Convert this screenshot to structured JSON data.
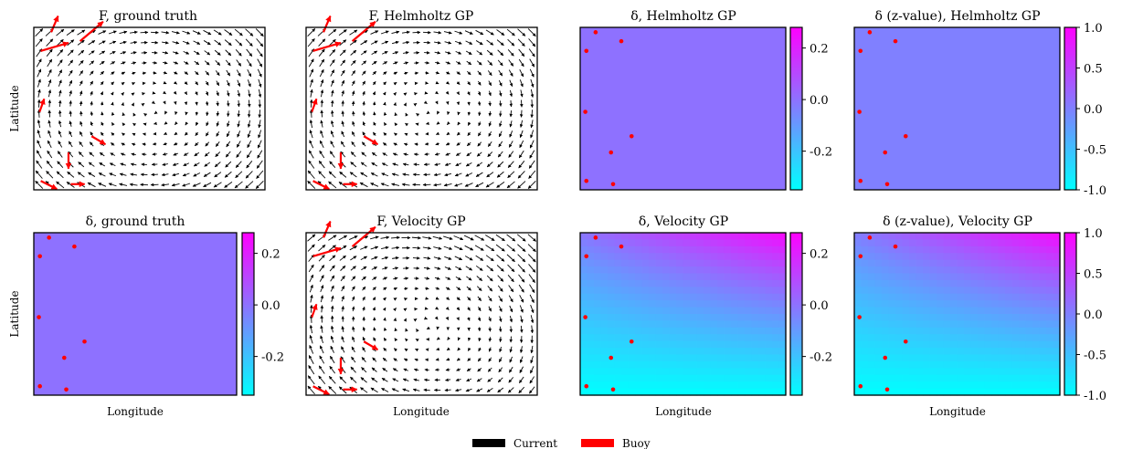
{
  "figure": {
    "legend": [
      {
        "label": "Current",
        "color": "#000000"
      },
      {
        "label": "Buoy",
        "color": "#ff0000"
      }
    ],
    "xlabel": "Longitude",
    "ylabel": "Latitude"
  },
  "colors": {
    "cmap_low": "#00ffff",
    "cmap_high": "#ff00ff",
    "current": "#000000",
    "buoy": "#ff0000"
  },
  "chart_data": [
    {
      "type": "quiver",
      "title": "F, ground truth",
      "field": "vortex",
      "ylabel": "Latitude",
      "xlabel": ""
    },
    {
      "type": "quiver",
      "title": "F, Helmholtz GP",
      "field": "vortex",
      "ylabel": "",
      "xlabel": ""
    },
    {
      "type": "heatmap",
      "title": "δ, Helmholtz GP",
      "field": "uniform",
      "uniform_value": 0.0,
      "colorbar": {
        "range": [
          -0.35,
          0.28
        ],
        "ticks": [
          0.2,
          0.0,
          -0.2
        ],
        "tick_labels": [
          "0.2",
          "0.0",
          "-0.2"
        ]
      },
      "xlabel": ""
    },
    {
      "type": "heatmap",
      "title": "δ (z-value), Helmholtz GP",
      "field": "uniform",
      "uniform_value": 0.0,
      "colorbar": {
        "range": [
          -1.0,
          1.0
        ],
        "ticks": [
          1.0,
          0.5,
          0.0,
          -0.5,
          -1.0
        ],
        "tick_labels": [
          "1.0",
          "0.5",
          "0.0",
          "-0.5",
          "-1.0"
        ]
      },
      "xlabel": ""
    },
    {
      "type": "heatmap",
      "title": "δ, ground truth",
      "field": "uniform",
      "uniform_value": 0.0,
      "colorbar": {
        "range": [
          -0.35,
          0.28
        ],
        "ticks": [
          0.2,
          0.0,
          -0.2
        ],
        "tick_labels": [
          "0.2",
          "0.0",
          "-0.2"
        ]
      },
      "ylabel": "Latitude",
      "xlabel": "Longitude"
    },
    {
      "type": "quiver",
      "title": "F, Velocity GP",
      "field": "vortex_distorted",
      "ylabel": "",
      "xlabel": "Longitude"
    },
    {
      "type": "heatmap",
      "title": "δ, Velocity GP",
      "field": "gradient",
      "corners": {
        "top_left": 0.0,
        "top_right": 0.28,
        "bottom_left": -0.35,
        "bottom_right": -0.35
      },
      "colorbar": {
        "range": [
          -0.35,
          0.28
        ],
        "ticks": [
          0.2,
          0.0,
          -0.2
        ],
        "tick_labels": [
          "0.2",
          "0.0",
          "-0.2"
        ]
      },
      "xlabel": "Longitude"
    },
    {
      "type": "heatmap",
      "title": "δ (z-value), Velocity GP",
      "field": "gradient",
      "corners": {
        "top_left": 0.05,
        "top_right": 1.0,
        "bottom_left": -1.0,
        "bottom_right": -1.0
      },
      "colorbar": {
        "range": [
          -1.0,
          1.0
        ],
        "ticks": [
          1.0,
          0.5,
          0.0,
          -0.5,
          -1.0
        ],
        "tick_labels": [
          "1.0",
          "0.5",
          "0.0",
          "-0.5",
          "-1.0"
        ]
      },
      "xlabel": "Longitude"
    }
  ],
  "buoys": {
    "positions": [
      [
        0.075,
        0.03
      ],
      [
        0.2,
        0.085
      ],
      [
        0.03,
        0.145
      ],
      [
        0.025,
        0.52
      ],
      [
        0.15,
        0.77
      ],
      [
        0.25,
        0.67
      ],
      [
        0.03,
        0.945
      ],
      [
        0.16,
        0.965
      ]
    ],
    "vectors": [
      [
        0.03,
        -0.1
      ],
      [
        0.1,
        -0.12
      ],
      [
        0.12,
        -0.05
      ],
      [
        0.02,
        -0.08
      ],
      [
        0.0,
        0.1
      ],
      [
        0.06,
        0.05
      ],
      [
        0.07,
        0.05
      ],
      [
        0.06,
        0.0
      ]
    ]
  }
}
